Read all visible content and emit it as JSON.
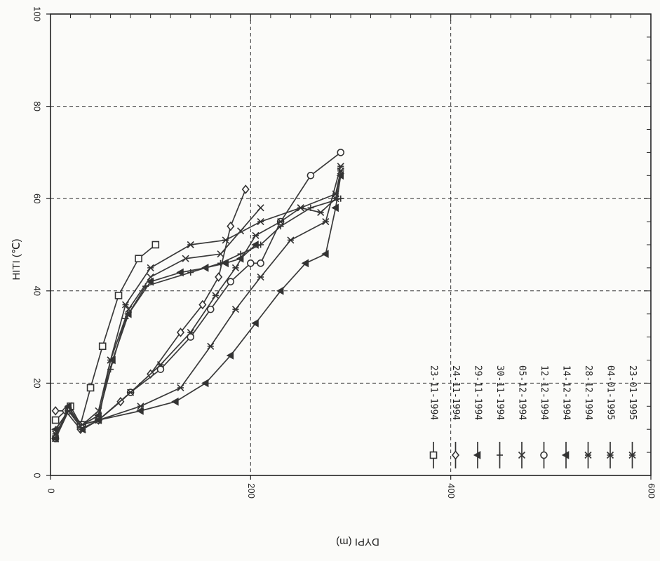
{
  "chart_data": {
    "type": "line",
    "title": "",
    "xlabel": "DYPI (m)",
    "ylabel": "HITI (℃)",
    "xlim": [
      0,
      600
    ],
    "ylim": [
      0,
      100
    ],
    "x_ticks": [
      "0",
      "200",
      "400",
      "600"
    ],
    "y_ticks": [
      "0",
      "20",
      "40",
      "60",
      "80",
      "100"
    ],
    "grid": true,
    "legend_position": "bottom-right",
    "series": [
      {
        "name": "23-11-1994",
        "marker": "square",
        "x": [
          5,
          20,
          30,
          40,
          52,
          68,
          88,
          105
        ],
        "y": [
          12,
          15,
          11,
          19,
          28,
          39,
          47,
          50
        ]
      },
      {
        "name": "24-11-1994",
        "marker": "diamond",
        "x": [
          5,
          15,
          30,
          48,
          70,
          100,
          130,
          152,
          168,
          180,
          195
        ],
        "y": [
          14,
          14,
          10,
          12,
          16,
          22,
          31,
          37,
          43,
          54,
          62
        ]
      },
      {
        "name": "29-11-1994",
        "marker": "triangle",
        "x": [
          5,
          18,
          32,
          48,
          62,
          78,
          100,
          130,
          155,
          175,
          190,
          205
        ],
        "y": [
          10,
          14,
          11,
          13,
          25,
          35,
          42,
          44,
          45,
          46,
          47,
          50
        ]
      },
      {
        "name": "30-11-1994",
        "marker": "plus",
        "x": [
          5,
          18,
          32,
          48,
          60,
          75,
          95,
          140,
          170,
          190,
          210,
          230,
          260,
          290
        ],
        "y": [
          10,
          14,
          11,
          13,
          23,
          34,
          41,
          44,
          46,
          48,
          50,
          54,
          58,
          60
        ]
      },
      {
        "name": "05-12-1994",
        "marker": "x",
        "x": [
          5,
          18,
          32,
          48,
          60,
          78,
          100,
          135,
          170,
          190,
          210
        ],
        "y": [
          9,
          14,
          11,
          14,
          25,
          36,
          43,
          47,
          48,
          53,
          58
        ]
      },
      {
        "name": "12-12-1994",
        "marker": "circle",
        "x": [
          5,
          18,
          32,
          48,
          80,
          110,
          140,
          160,
          180,
          200,
          210,
          230,
          260,
          290
        ],
        "y": [
          8,
          14,
          11,
          12,
          18,
          23,
          30,
          36,
          42,
          46,
          46,
          55,
          65,
          70
        ]
      },
      {
        "name": "14-12-1994",
        "marker": "triangle",
        "x": [
          5,
          18,
          32,
          48,
          90,
          125,
          155,
          180,
          205,
          230,
          255,
          275,
          285,
          290
        ],
        "y": [
          8,
          15,
          10,
          12,
          14,
          16,
          20,
          26,
          33,
          40,
          46,
          48,
          58,
          65
        ]
      },
      {
        "name": "28-12-1994",
        "marker": "star",
        "x": [
          5,
          18,
          32,
          48,
          90,
          130,
          160,
          185,
          210,
          240,
          275,
          290
        ],
        "y": [
          8,
          14,
          10,
          12,
          15,
          19,
          28,
          36,
          43,
          51,
          55,
          67
        ]
      },
      {
        "name": "04-01-1995",
        "marker": "star",
        "x": [
          5,
          18,
          32,
          48,
          60,
          75,
          100,
          140,
          175,
          210,
          250,
          285,
          290
        ],
        "y": [
          9,
          14,
          11,
          12,
          25,
          37,
          45,
          50,
          51,
          55,
          58,
          61,
          66
        ]
      },
      {
        "name": "23-01-1995",
        "marker": "star",
        "x": [
          5,
          18,
          32,
          48,
          80,
          110,
          140,
          165,
          185,
          205,
          230,
          250,
          270,
          285,
          290
        ],
        "y": [
          8,
          14,
          10,
          12,
          18,
          24,
          31,
          39,
          45,
          52,
          55,
          58,
          57,
          60,
          66
        ]
      }
    ]
  }
}
